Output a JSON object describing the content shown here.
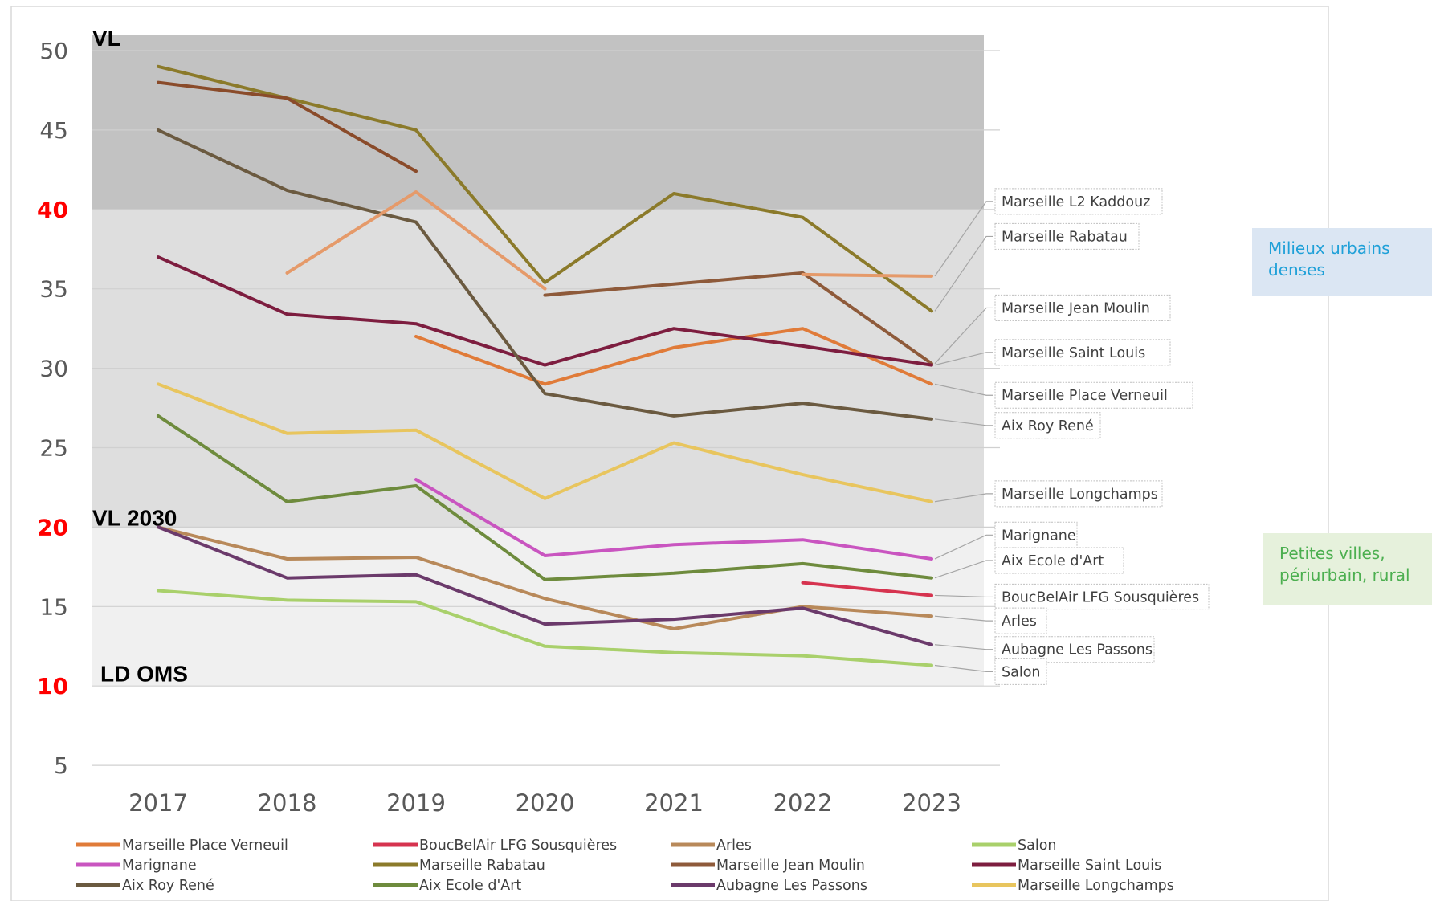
{
  "chart_data": {
    "type": "line",
    "x": [
      "2017",
      "2018",
      "2019",
      "2020",
      "2021",
      "2022",
      "2023"
    ],
    "ylim": [
      3,
      52
    ],
    "y_ticks": [
      {
        "label": "50",
        "value": 50,
        "color": "#595959"
      },
      {
        "label": "45",
        "value": 45,
        "color": "#595959"
      },
      {
        "label": "40",
        "value": 40,
        "color": "#ff0000"
      },
      {
        "label": "35",
        "value": 35,
        "color": "#595959"
      },
      {
        "label": "30",
        "value": 30,
        "color": "#595959"
      },
      {
        "label": "25",
        "value": 25,
        "color": "#595959"
      },
      {
        "label": "20",
        "value": 20,
        "color": "#ff0000"
      },
      {
        "label": "15",
        "value": 15,
        "color": "#595959"
      },
      {
        "label": "10",
        "value": 10,
        "color": "#ff0000"
      },
      {
        "label": "5",
        "value": 5,
        "color": "#595959"
      }
    ],
    "bands": [
      {
        "from": 40,
        "to": 51,
        "color": "#c2c2c2"
      },
      {
        "from": 20,
        "to": 40,
        "color": "#dedede"
      },
      {
        "from": 10,
        "to": 20,
        "color": "#f0f0f0"
      }
    ],
    "threshold_labels": [
      {
        "text": "VL",
        "value": 50.8
      },
      {
        "text": "VL 2030",
        "value": 20.6
      },
      {
        "text": "LD OMS",
        "value": 10.8
      }
    ],
    "series": [
      {
        "name": "Marseille Place Verneuil",
        "color": "#e07b39",
        "values": [
          null,
          null,
          32,
          29,
          31.3,
          32.5,
          29
        ]
      },
      {
        "name": "BoucBelAir LFG Sousquières",
        "color": "#d6334f",
        "values": [
          null,
          null,
          null,
          null,
          null,
          16.5,
          15.7
        ]
      },
      {
        "name": "Arles",
        "color": "#b8895a",
        "values": [
          20,
          18,
          18.1,
          15.5,
          13.6,
          15,
          14.4
        ]
      },
      {
        "name": "Salon",
        "color": "#a9d06b",
        "values": [
          16,
          15.4,
          15.3,
          12.5,
          12.1,
          11.9,
          11.3
        ]
      },
      {
        "name": "Marignane",
        "color": "#c955c0",
        "values": [
          null,
          null,
          23,
          18.2,
          18.9,
          19.2,
          18
        ]
      },
      {
        "name": "Marseille Rabatau",
        "color": "#8b7a2a",
        "values": [
          49,
          47,
          45,
          35.4,
          41,
          39.5,
          33.6
        ]
      },
      {
        "name": "Marseille Jean Moulin",
        "color": "#8e5a3a",
        "values": [
          null,
          null,
          null,
          34.6,
          35.3,
          36,
          30.3
        ]
      },
      {
        "name": "Marseille Saint Louis",
        "color": "#7d1d3f",
        "values": [
          37,
          33.4,
          32.8,
          30.2,
          32.5,
          31.4,
          30.2
        ]
      },
      {
        "name": "Aix Roy René",
        "color": "#6b5a40",
        "values": [
          45,
          41.2,
          39.2,
          28.4,
          27,
          27.8,
          26.8
        ]
      },
      {
        "name": "Aix Ecole d'Art",
        "color": "#6e8b3d",
        "values": [
          27,
          21.6,
          22.6,
          16.7,
          17.1,
          17.7,
          16.8
        ]
      },
      {
        "name": "Aubagne Les Passons",
        "color": "#6b3a6b",
        "values": [
          20,
          16.8,
          17,
          13.9,
          14.2,
          14.9,
          12.6
        ]
      },
      {
        "name": "Marseille Longchamps",
        "color": "#e8c55e",
        "values": [
          29,
          25.9,
          26.1,
          21.8,
          25.3,
          23.3,
          21.6
        ]
      },
      {
        "name": "Marseille L2 Kaddouz",
        "color": "#e59a6a",
        "values": [
          null,
          36,
          41.1,
          35,
          null,
          35.9,
          35.8
        ]
      },
      {
        "name": "Marseille Jean Moulin",
        "color": "#8a4b2a",
        "values": [
          48,
          47,
          42.4,
          null,
          null,
          null,
          null
        ]
      }
    ],
    "callouts": [
      {
        "text": "Marseille L2 Kaddouz",
        "series": 12,
        "label_value": 40.5
      },
      {
        "text": "Marseille Rabatau",
        "series": 5,
        "label_value": 38.3
      },
      {
        "text": "Marseille Jean Moulin",
        "series": 6,
        "label_value": 33.8
      },
      {
        "text": "Marseille Saint Louis",
        "series": 7,
        "label_value": 31.0
      },
      {
        "text": "Marseille Place Verneuil",
        "series": 0,
        "label_value": 28.3
      },
      {
        "text": "Aix Roy René",
        "series": 8,
        "label_value": 26.4
      },
      {
        "text": "Marseille Longchamps",
        "series": 11,
        "label_value": 22.1
      },
      {
        "text": "Marignane",
        "series": 4,
        "label_value": 19.5
      },
      {
        "text": "Aix Ecole d'Art",
        "series": 9,
        "label_value": 17.9
      },
      {
        "text": "BoucBelAir LFG Sousquières",
        "series": 1,
        "label_value": 15.6
      },
      {
        "text": "Arles",
        "series": 2,
        "label_value": 14.1
      },
      {
        "text": "Aubagne Les Passons",
        "series": 10,
        "label_value": 12.3
      },
      {
        "text": "Salon",
        "series": 3,
        "label_value": 10.9
      }
    ],
    "legend": [
      [
        "Marseille Place Verneuil",
        "#e07b39"
      ],
      [
        "BoucBelAir LFG Sousquières",
        "#d6334f"
      ],
      [
        "Arles",
        "#b8895a"
      ],
      [
        "Salon",
        "#a9d06b"
      ],
      [
        "Marignane",
        "#c955c0"
      ],
      [
        "Marseille Rabatau",
        "#8b7a2a"
      ],
      [
        "Marseille Jean Moulin",
        "#8e5a3a"
      ],
      [
        "Marseille Saint Louis",
        "#7d1d3f"
      ],
      [
        "Aix Roy René",
        "#6b5a40"
      ],
      [
        "Aix Ecole d'Art",
        "#6e8b3d"
      ],
      [
        "Aubagne Les Passons",
        "#6b3a6b"
      ],
      [
        "Marseille Longchamps",
        "#e8c55e"
      ]
    ],
    "legend_placement": "bottom",
    "grid": true
  },
  "side_notes": {
    "urban": "Milieux urbains denses",
    "rural": "Petites villes, périurbain, rural"
  }
}
